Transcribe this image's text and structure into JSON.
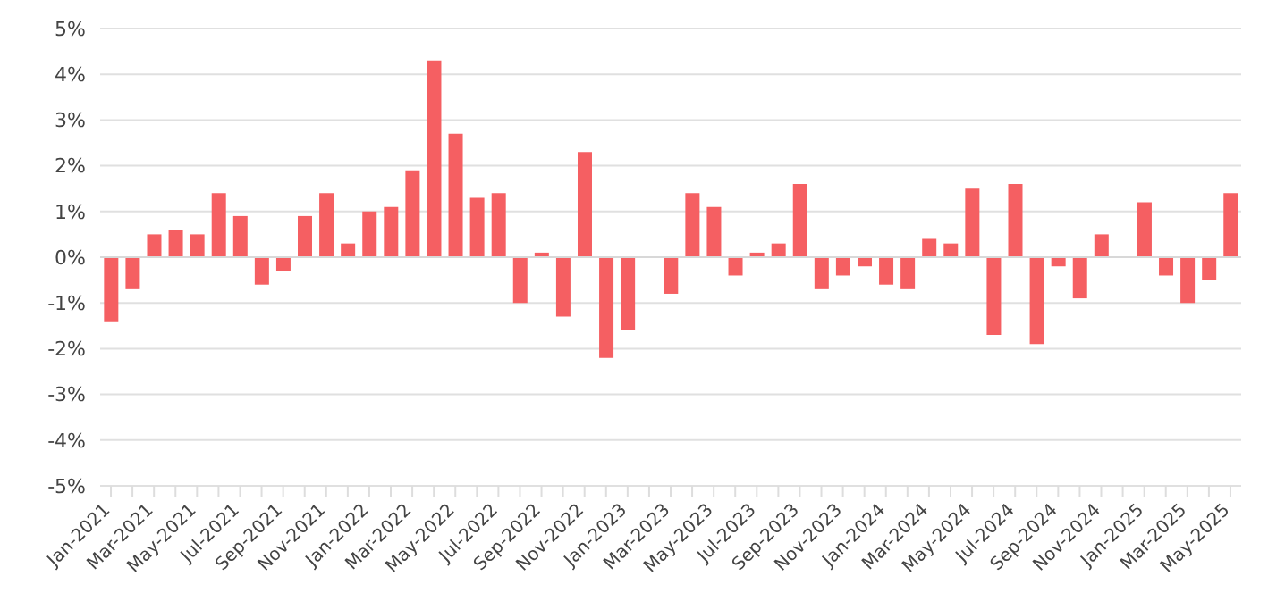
{
  "chart_data": {
    "type": "bar",
    "categories": [
      "Jan-2021",
      null,
      "Mar-2021",
      null,
      "May-2021",
      null,
      "Jul-2021",
      null,
      "Sep-2021",
      null,
      "Nov-2021",
      null,
      "Jan-2022",
      null,
      "Mar-2022",
      null,
      "May-2022",
      null,
      "Jul-2022",
      null,
      "Sep-2022",
      null,
      "Nov-2022",
      null,
      "Jan-2023",
      null,
      "Mar-2023",
      null,
      "May-2023",
      null,
      "Jul-2023",
      null,
      "Sep-2023",
      null,
      "Nov-2023",
      null,
      "Jan-2024",
      null,
      "Mar-2024",
      null,
      "May-2024",
      null,
      "Jul-2024",
      null,
      "Sep-2024",
      null,
      "Nov-2024",
      null,
      "Jan-2025",
      null,
      "Mar-2025",
      null,
      "May-2025"
    ],
    "series": [
      {
        "color": "#f55f62",
        "values": [
          -1.4,
          -0.7,
          0.5,
          0.6,
          0.5,
          1.4,
          0.9,
          -0.6,
          -0.3,
          0.9,
          1.4,
          0.3,
          1.0,
          1.1,
          1.9,
          4.3,
          2.7,
          1.3,
          1.4,
          -1.0,
          0.1,
          -1.3,
          2.3,
          -2.2,
          -1.6,
          0,
          -0.8,
          1.4,
          1.1,
          -0.4,
          0.1,
          0.3,
          1.6,
          -0.7,
          -0.4,
          -0.2,
          -0.6,
          -0.7,
          0.4,
          0.3,
          1.5,
          -1.7,
          1.6,
          -1.9,
          -0.2,
          -0.9,
          0.5,
          0,
          1.2,
          -0.4,
          -1.0,
          -0.5,
          1.4
        ]
      }
    ],
    "ylim": [
      -5,
      5
    ],
    "yticks": [
      {
        "value": -5,
        "label": "-5%"
      },
      {
        "value": -4,
        "label": "-4%"
      },
      {
        "value": -3,
        "label": "-3%"
      },
      {
        "value": -2,
        "label": "-2%"
      },
      {
        "value": -1,
        "label": "-1%"
      },
      {
        "value": 0,
        "label": "0%"
      },
      {
        "value": 1,
        "label": "1%"
      },
      {
        "value": 2,
        "label": "2%"
      },
      {
        "value": 3,
        "label": "3%"
      },
      {
        "value": 4,
        "label": "4%"
      },
      {
        "value": 5,
        "label": "5%"
      }
    ],
    "grid": "y",
    "legend": false
  }
}
